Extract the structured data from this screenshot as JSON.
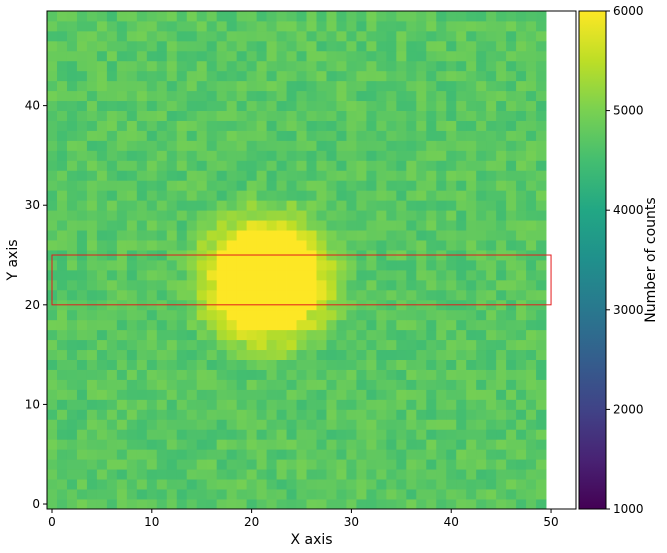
{
  "chart_data": {
    "type": "heatmap",
    "title": "",
    "xlabel": "X axis",
    "ylabel": "Y axis",
    "xlim": [
      -0.5,
      49.5
    ],
    "ylim": [
      -0.5,
      49.5
    ],
    "x_ticks": [
      0,
      10,
      20,
      30,
      40,
      50
    ],
    "y_ticks": [
      0,
      10,
      20,
      30,
      40
    ],
    "grid_shape": [
      50,
      50
    ],
    "background_counts": 4700,
    "background_noise": 250,
    "source": {
      "center": [
        21.5,
        22.5
      ],
      "radius": 5.5,
      "peak_counts": 6000,
      "halo_radius": 9
    },
    "colormap": "viridis",
    "colorbar": {
      "label": "Number of counts",
      "range": [
        1000,
        6000
      ],
      "ticks": [
        1000,
        2000,
        3000,
        4000,
        5000,
        6000
      ]
    },
    "region_box": {
      "x": [
        0,
        50
      ],
      "y": [
        20,
        25
      ],
      "color": "#e41a1c"
    }
  }
}
